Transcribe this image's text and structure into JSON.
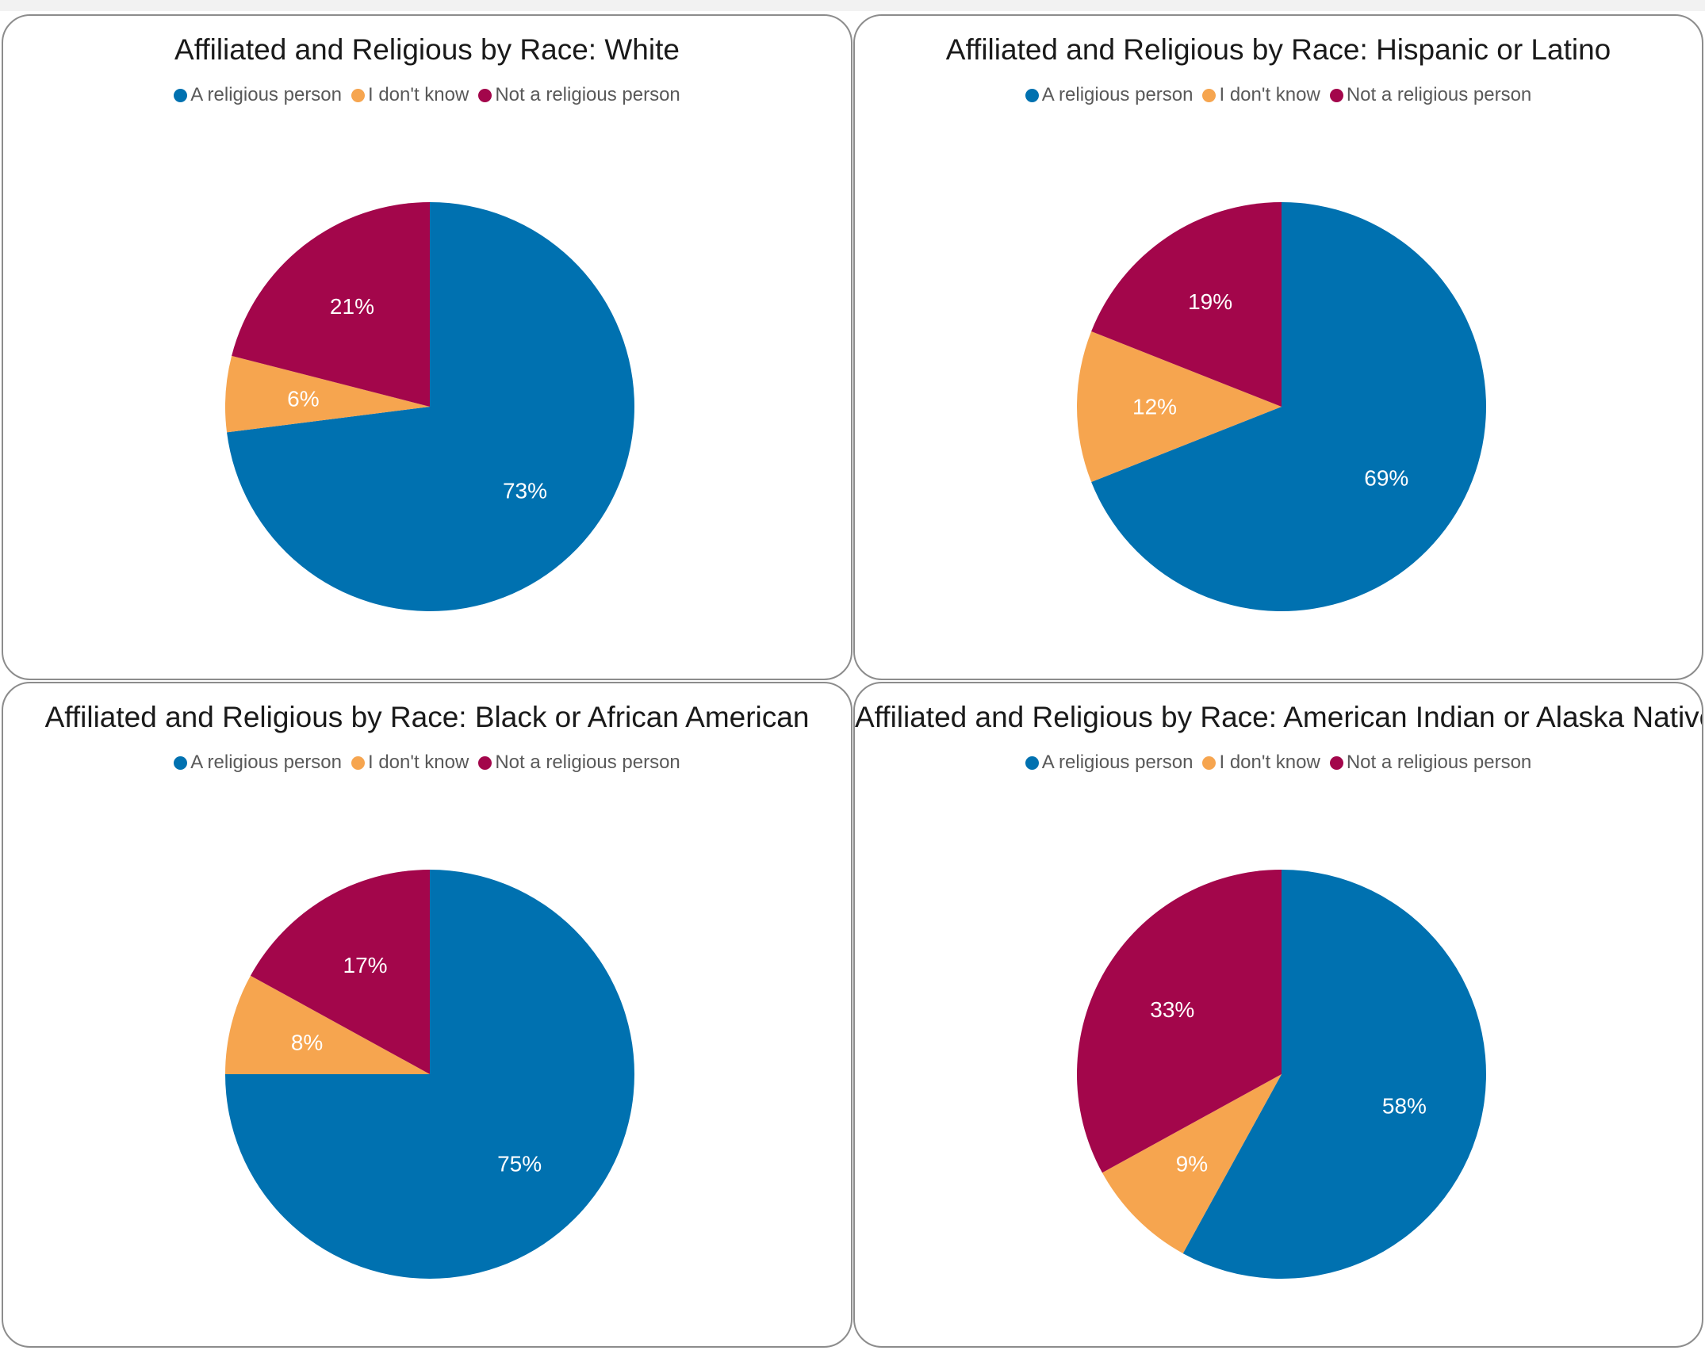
{
  "colors": {
    "religious": "#0071b0",
    "dont_know": "#f6a54f",
    "not_religious": "#a3064b"
  },
  "legend": [
    "A religious person",
    "I don't know",
    "Not a religious person"
  ],
  "chart_data": [
    {
      "type": "pie",
      "title": "Affiliated and Religious by Race: White",
      "categories": [
        "A religious person",
        "I don't know",
        "Not a religious person"
      ],
      "values": [
        73,
        6,
        21
      ],
      "labels": [
        "73%",
        "6%",
        "21%"
      ]
    },
    {
      "type": "pie",
      "title": "Affiliated and Religious by Race: Hispanic or Latino",
      "categories": [
        "A religious person",
        "I don't know",
        "Not a religious person"
      ],
      "values": [
        69,
        12,
        19
      ],
      "labels": [
        "69%",
        "12%",
        "19%"
      ]
    },
    {
      "type": "pie",
      "title": "Affiliated and Religious by Race: Black or African American",
      "categories": [
        "A religious person",
        "I don't know",
        "Not a religious person"
      ],
      "values": [
        75,
        8,
        17
      ],
      "labels": [
        "75%",
        "8%",
        "17%"
      ]
    },
    {
      "type": "pie",
      "title": "Affiliated and Religious by Race: American Indian or Alaska Native",
      "categories": [
        "A religious person",
        "I don't know",
        "Not a religious person"
      ],
      "values": [
        58,
        9,
        33
      ],
      "labels": [
        "58%",
        "9%",
        "33%"
      ]
    }
  ]
}
